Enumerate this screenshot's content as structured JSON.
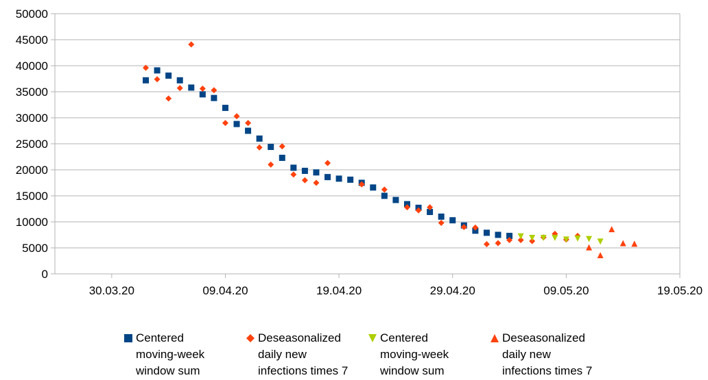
{
  "chart_data": {
    "type": "scatter",
    "title": "",
    "xlabel": "",
    "ylabel": "",
    "ylim": [
      0,
      50000
    ],
    "y_ticks": [
      0,
      5000,
      10000,
      15000,
      20000,
      25000,
      30000,
      35000,
      40000,
      45000,
      50000
    ],
    "y_tick_labels": [
      "0",
      "5000",
      "10000",
      "15000",
      "20000",
      "25000",
      "30000",
      "35000",
      "40000",
      "45000",
      "50000"
    ],
    "xlim": [
      "2020-03-25",
      "2020-05-19"
    ],
    "x_ticks": [
      "2020-03-30",
      "2020-04-09",
      "2020-04-19",
      "2020-04-29",
      "2020-05-09",
      "2020-05-19"
    ],
    "x_tick_labels": [
      "30.03.20",
      "09.04.20",
      "19.04.20",
      "29.04.20",
      "09.05.20",
      "19.05.20"
    ],
    "grid": "horizontal",
    "legend_position": "bottom",
    "series": [
      {
        "name": "Centered moving-week window sum",
        "marker": "square",
        "color": "#004586",
        "points": [
          [
            "2020-04-02",
            37200
          ],
          [
            "2020-04-03",
            39100
          ],
          [
            "2020-04-04",
            38100
          ],
          [
            "2020-04-05",
            37200
          ],
          [
            "2020-04-06",
            35800
          ],
          [
            "2020-04-07",
            34500
          ],
          [
            "2020-04-08",
            33800
          ],
          [
            "2020-04-09",
            31900
          ],
          [
            "2020-04-10",
            28800
          ],
          [
            "2020-04-11",
            27500
          ],
          [
            "2020-04-12",
            26000
          ],
          [
            "2020-04-13",
            24400
          ],
          [
            "2020-04-14",
            22300
          ],
          [
            "2020-04-15",
            20400
          ],
          [
            "2020-04-16",
            19800
          ],
          [
            "2020-04-17",
            19500
          ],
          [
            "2020-04-18",
            18600
          ],
          [
            "2020-04-19",
            18300
          ],
          [
            "2020-04-20",
            18100
          ],
          [
            "2020-04-21",
            17500
          ],
          [
            "2020-04-22",
            16600
          ],
          [
            "2020-04-23",
            15000
          ],
          [
            "2020-04-24",
            14200
          ],
          [
            "2020-04-25",
            13400
          ],
          [
            "2020-04-26",
            12700
          ],
          [
            "2020-04-27",
            11900
          ],
          [
            "2020-04-28",
            11000
          ],
          [
            "2020-04-29",
            10300
          ],
          [
            "2020-04-30",
            9300
          ],
          [
            "2020-05-01",
            8300
          ],
          [
            "2020-05-02",
            7900
          ],
          [
            "2020-05-03",
            7500
          ],
          [
            "2020-05-04",
            7300
          ]
        ]
      },
      {
        "name": "Deseasonalized daily new infections times 7",
        "marker": "diamond",
        "color": "#ff420e",
        "points": [
          [
            "2020-04-02",
            39600
          ],
          [
            "2020-04-03",
            37400
          ],
          [
            "2020-04-04",
            33700
          ],
          [
            "2020-04-05",
            35700
          ],
          [
            "2020-04-06",
            44100
          ],
          [
            "2020-04-07",
            35600
          ],
          [
            "2020-04-08",
            35300
          ],
          [
            "2020-04-09",
            29000
          ],
          [
            "2020-04-10",
            30300
          ],
          [
            "2020-04-11",
            29000
          ],
          [
            "2020-04-12",
            24300
          ],
          [
            "2020-04-13",
            21000
          ],
          [
            "2020-04-14",
            24500
          ],
          [
            "2020-04-15",
            19100
          ],
          [
            "2020-04-16",
            18000
          ],
          [
            "2020-04-17",
            17500
          ],
          [
            "2020-04-18",
            21300
          ],
          [
            "2020-04-21",
            17200
          ],
          [
            "2020-04-23",
            16200
          ],
          [
            "2020-04-25",
            12800
          ],
          [
            "2020-04-26",
            12200
          ],
          [
            "2020-04-27",
            12800
          ],
          [
            "2020-04-28",
            9800
          ],
          [
            "2020-04-30",
            9000
          ],
          [
            "2020-05-01",
            8900
          ],
          [
            "2020-05-02",
            5700
          ],
          [
            "2020-05-03",
            5900
          ],
          [
            "2020-05-04",
            6500
          ],
          [
            "2020-05-05",
            6500
          ],
          [
            "2020-05-06",
            6300
          ],
          [
            "2020-05-07",
            7000
          ],
          [
            "2020-05-08",
            7700
          ],
          [
            "2020-05-09",
            6600
          ],
          [
            "2020-05-10",
            7300
          ]
        ]
      },
      {
        "name": "Centered moving-week window sum",
        "marker": "triangle-down",
        "color": "#aecf00",
        "points": [
          [
            "2020-05-05",
            7200
          ],
          [
            "2020-05-06",
            6900
          ],
          [
            "2020-05-07",
            6900
          ],
          [
            "2020-05-08",
            6900
          ],
          [
            "2020-05-09",
            6600
          ],
          [
            "2020-05-10",
            6800
          ],
          [
            "2020-05-11",
            6700
          ],
          [
            "2020-05-12",
            6200
          ]
        ]
      },
      {
        "name": "Deseasonalized daily new infections times 7",
        "marker": "triangle-up",
        "color": "#ff420e",
        "points": [
          [
            "2020-05-11",
            5100
          ],
          [
            "2020-05-12",
            3600
          ],
          [
            "2020-05-13",
            8600
          ],
          [
            "2020-05-14",
            5900
          ],
          [
            "2020-05-15",
            5800
          ]
        ]
      }
    ],
    "legend": [
      {
        "marker": "square",
        "color": "#004586",
        "label": "Centered\nmoving-week\nwindow sum"
      },
      {
        "marker": "diamond",
        "color": "#ff420e",
        "label": "Deseasonalized\ndaily new\ninfections times 7"
      },
      {
        "marker": "triangle-down",
        "color": "#aecf00",
        "label": "Centered\nmoving-week\nwindow sum"
      },
      {
        "marker": "triangle-up",
        "color": "#ff420e",
        "label": "Deseasonalized\ndaily new\ninfections times 7"
      }
    ]
  }
}
